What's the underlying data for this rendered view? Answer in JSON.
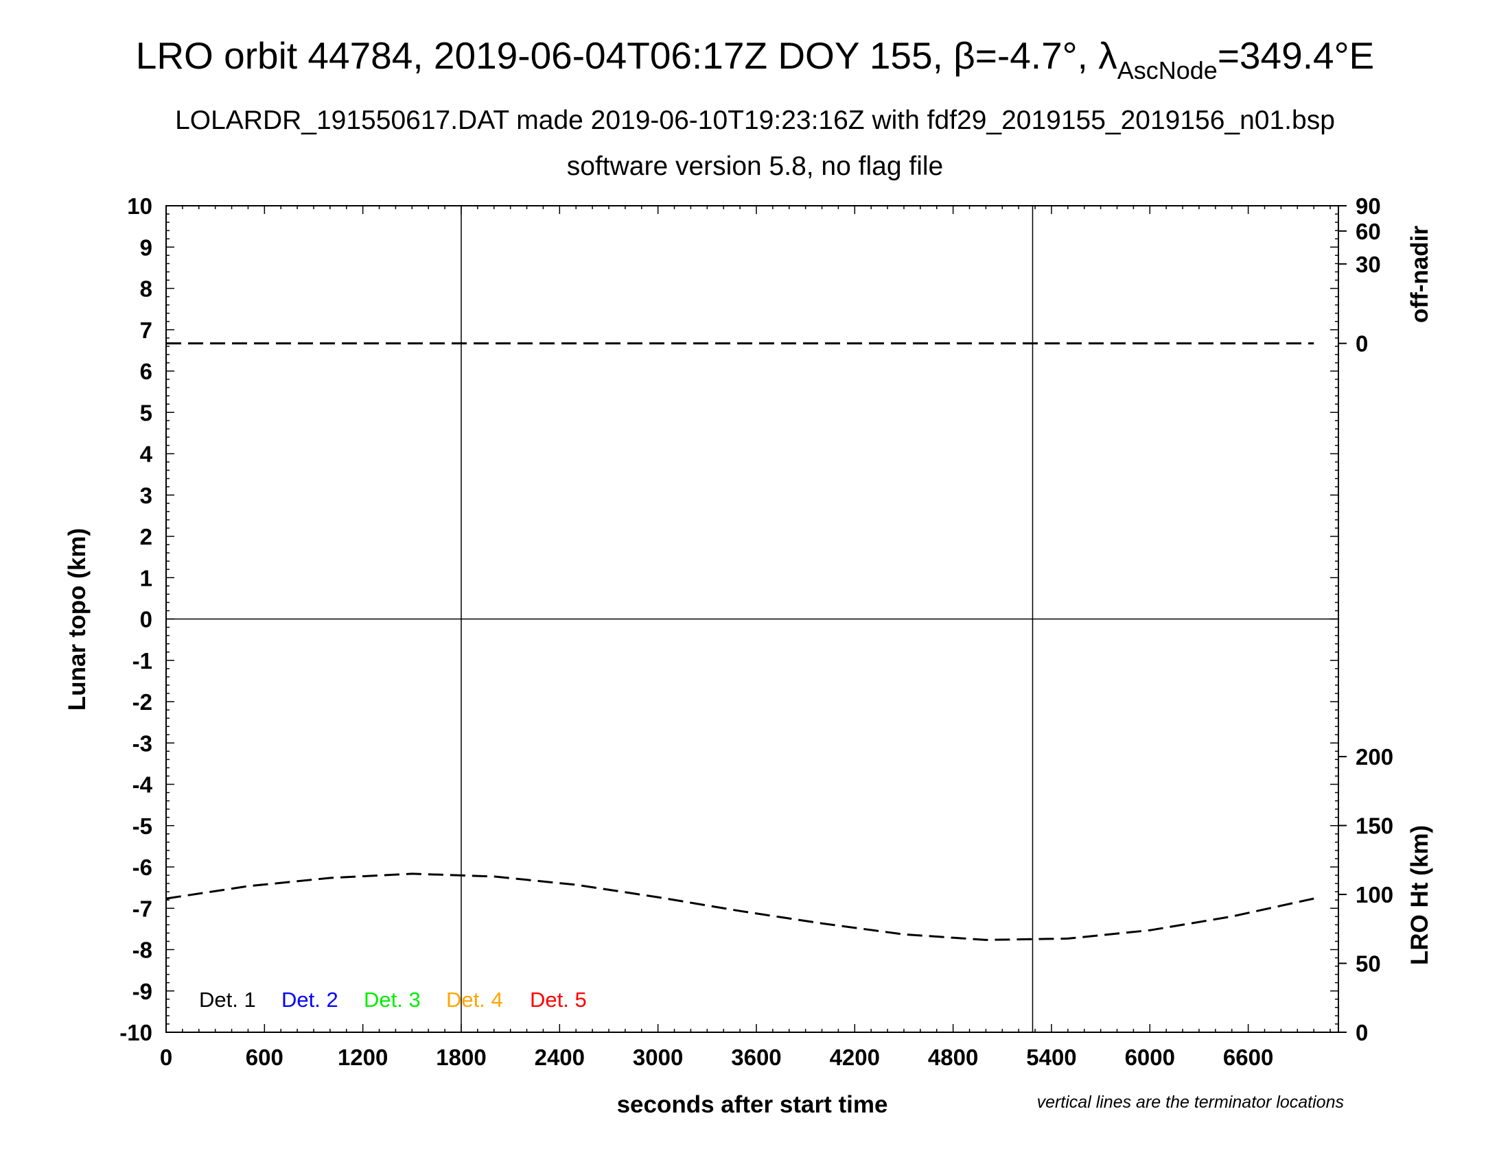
{
  "title": {
    "main": "LRO orbit 44784, 2019-06-04T06:17Z DOY 155, β=-4.7°, λ",
    "sub_script": "AscNode",
    "suffix": "=349.4°E"
  },
  "subtitle_1": "LOLARDR_191550617.DAT made 2019-06-10T19:23:16Z with fdf29_2019155_2019156_n01.bsp",
  "subtitle_2": "software version 5.8, no flag file",
  "note": "vertical lines are the terminator locations",
  "colors": {
    "det1": "#000000",
    "det2": "#0000ff",
    "det3": "#00ee00",
    "det4": "#ffa500",
    "det5": "#ff0000",
    "grid": "#000000"
  },
  "chart_data": {
    "type": "line",
    "xlabel": "seconds after start time",
    "ylabel_left": "Lunar topo (km)",
    "ylabel_right_top": "off-nadir",
    "ylabel_right_bottom": "LRO Ht (km)",
    "xlim": [
      0,
      7150
    ],
    "ylim_left": [
      -10,
      10
    ],
    "x_ticks": [
      "0",
      "600",
      "1200",
      "1800",
      "2400",
      "3000",
      "3600",
      "4200",
      "4800",
      "5400",
      "6000",
      "6600"
    ],
    "y_ticks_left": [
      "10",
      "9",
      "8",
      "7",
      "6",
      "5",
      "4",
      "3",
      "2",
      "1",
      "0",
      "-1",
      "-2",
      "-3",
      "-4",
      "-5",
      "-6",
      "-7",
      "-8",
      "-9",
      "-10"
    ],
    "y_ticks_right_top": [
      "90",
      "60",
      "30",
      "0"
    ],
    "y_ticks_right_bottom": [
      "200",
      "150",
      "100",
      "50",
      "0"
    ],
    "terminator_lines_x": [
      1800,
      5285
    ],
    "series": [
      {
        "name": "off-nadir",
        "style": "dashed",
        "axis": "right_top",
        "x": [
          0,
          1000,
          2000,
          3000,
          4000,
          5000,
          6000,
          7000
        ],
        "values": [
          0,
          0,
          0,
          0,
          0,
          0,
          0,
          0
        ]
      },
      {
        "name": "LRO Ht (km)",
        "style": "dashed",
        "axis": "right_bottom",
        "x": [
          0,
          500,
          1000,
          1500,
          2000,
          2500,
          3000,
          3500,
          4000,
          4500,
          5000,
          5500,
          6000,
          6500,
          7000
        ],
        "values": [
          97,
          106,
          112,
          115,
          113,
          107,
          98,
          88,
          79,
          71,
          67,
          68,
          74,
          84,
          97
        ]
      }
    ],
    "legend": {
      "placement": "bottom-left",
      "items": [
        {
          "label": "Det. 1",
          "color": "#000000"
        },
        {
          "label": "Det. 2",
          "color": "#0000ff"
        },
        {
          "label": "Det. 3",
          "color": "#00ee00"
        },
        {
          "label": "Det. 4",
          "color": "#ffa500"
        },
        {
          "label": "Det. 5",
          "color": "#ff0000"
        }
      ]
    }
  }
}
